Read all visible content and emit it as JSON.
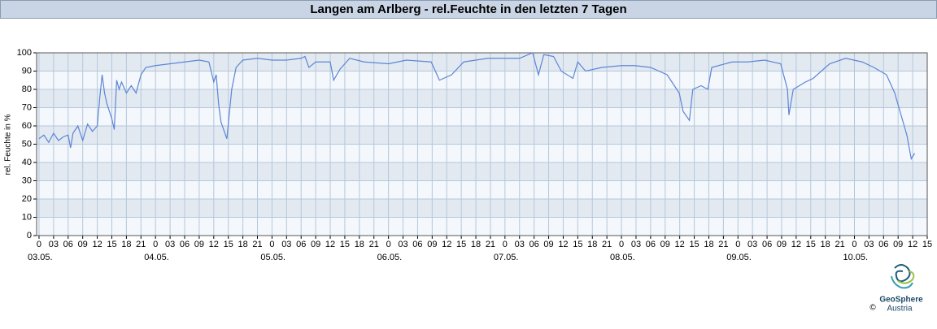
{
  "chart_data": {
    "type": "line",
    "title": "Langen am Arlberg - rel.Feuchte in den letzten 7 Tagen",
    "y_label": "rel. Feuchte in %",
    "color": "#5b86d6",
    "band_colors": [
      "#f4f7fb",
      "#e3e9f1"
    ],
    "grid": true,
    "xlim": [
      -0.5,
      183
    ],
    "ylim": [
      0,
      100
    ],
    "yticks": [
      0,
      10,
      20,
      30,
      40,
      50,
      60,
      70,
      80,
      90,
      100
    ],
    "xticks": [
      {
        "value": 0,
        "label": "0"
      },
      {
        "value": 3,
        "label": "03"
      },
      {
        "value": 6,
        "label": "06"
      },
      {
        "value": 9,
        "label": "09"
      },
      {
        "value": 12,
        "label": "12"
      },
      {
        "value": 15,
        "label": "15"
      },
      {
        "value": 18,
        "label": "18"
      },
      {
        "value": 21,
        "label": "21"
      },
      {
        "value": 24,
        "label": "0"
      },
      {
        "value": 27,
        "label": "03"
      },
      {
        "value": 30,
        "label": "06"
      },
      {
        "value": 33,
        "label": "09"
      },
      {
        "value": 36,
        "label": "12"
      },
      {
        "value": 39,
        "label": "15"
      },
      {
        "value": 42,
        "label": "18"
      },
      {
        "value": 45,
        "label": "21"
      },
      {
        "value": 48,
        "label": "0"
      },
      {
        "value": 51,
        "label": "03"
      },
      {
        "value": 54,
        "label": "06"
      },
      {
        "value": 57,
        "label": "09"
      },
      {
        "value": 60,
        "label": "12"
      },
      {
        "value": 63,
        "label": "15"
      },
      {
        "value": 66,
        "label": "18"
      },
      {
        "value": 69,
        "label": "21"
      },
      {
        "value": 72,
        "label": "0"
      },
      {
        "value": 75,
        "label": "03"
      },
      {
        "value": 78,
        "label": "06"
      },
      {
        "value": 81,
        "label": "09"
      },
      {
        "value": 84,
        "label": "12"
      },
      {
        "value": 87,
        "label": "15"
      },
      {
        "value": 90,
        "label": "18"
      },
      {
        "value": 93,
        "label": "21"
      },
      {
        "value": 96,
        "label": "0"
      },
      {
        "value": 99,
        "label": "03"
      },
      {
        "value": 102,
        "label": "06"
      },
      {
        "value": 105,
        "label": "09"
      },
      {
        "value": 108,
        "label": "12"
      },
      {
        "value": 111,
        "label": "15"
      },
      {
        "value": 114,
        "label": "18"
      },
      {
        "value": 117,
        "label": "21"
      },
      {
        "value": 120,
        "label": "0"
      },
      {
        "value": 123,
        "label": "03"
      },
      {
        "value": 126,
        "label": "06"
      },
      {
        "value": 129,
        "label": "09"
      },
      {
        "value": 132,
        "label": "12"
      },
      {
        "value": 135,
        "label": "15"
      },
      {
        "value": 138,
        "label": "18"
      },
      {
        "value": 141,
        "label": "21"
      },
      {
        "value": 144,
        "label": "0"
      },
      {
        "value": 147,
        "label": "03"
      },
      {
        "value": 150,
        "label": "06"
      },
      {
        "value": 153,
        "label": "09"
      },
      {
        "value": 156,
        "label": "12"
      },
      {
        "value": 159,
        "label": "15"
      },
      {
        "value": 162,
        "label": "18"
      },
      {
        "value": 165,
        "label": "21"
      },
      {
        "value": 168,
        "label": "0"
      },
      {
        "value": 171,
        "label": "03"
      },
      {
        "value": 174,
        "label": "06"
      },
      {
        "value": 177,
        "label": "09"
      },
      {
        "value": 180,
        "label": "12"
      },
      {
        "value": 183,
        "label": "15"
      }
    ],
    "day_labels": [
      {
        "value": 0,
        "label": "03.05."
      },
      {
        "value": 24,
        "label": "04.05."
      },
      {
        "value": 48,
        "label": "05.05."
      },
      {
        "value": 72,
        "label": "06.05."
      },
      {
        "value": 96,
        "label": "07.05."
      },
      {
        "value": 120,
        "label": "08.05."
      },
      {
        "value": 144,
        "label": "09.05."
      },
      {
        "value": 168,
        "label": "10.05."
      }
    ],
    "x": [
      0,
      1,
      2,
      3,
      4,
      5,
      6,
      6.5,
      7,
      8,
      9,
      10,
      11,
      12,
      12.5,
      13,
      13.5,
      14,
      15,
      15.5,
      16,
      16.5,
      17,
      18,
      19,
      20,
      21,
      22,
      24,
      27,
      30,
      33,
      35,
      36,
      36.5,
      37,
      37.5,
      38.7,
      39.7,
      40.6,
      42,
      45,
      48,
      51,
      54,
      54.8,
      55.6,
      57,
      60,
      60.7,
      62,
      64,
      67,
      72,
      75.7,
      80.8,
      82.5,
      85,
      87.5,
      92.5,
      96,
      99,
      101.7,
      102.9,
      104,
      106,
      107.6,
      110,
      111,
      112.6,
      116,
      120,
      122.7,
      126,
      129.4,
      131.9,
      132.7,
      134,
      134.7,
      136.4,
      137.8,
      138.6,
      142.8,
      146,
      149.5,
      152.8,
      154.2,
      154.5,
      155.4,
      157.9,
      159.5,
      162.9,
      166.2,
      169.6,
      172,
      174.6,
      176.3,
      177.6,
      178.8,
      179.7,
      180.4
    ],
    "values": [
      53,
      55,
      51,
      56,
      52,
      54,
      55,
      48,
      56,
      60,
      52,
      61,
      57,
      60,
      75,
      88,
      78,
      72,
      64,
      58,
      85,
      80,
      84,
      78,
      82,
      78,
      88,
      92,
      93,
      94,
      95,
      96,
      95,
      84,
      88,
      72,
      62,
      53,
      80,
      92,
      96,
      97,
      96,
      96,
      97,
      98,
      92,
      95,
      95,
      85,
      91,
      97,
      95,
      94,
      96,
      95,
      85,
      88,
      95,
      97,
      97,
      97,
      100,
      88,
      99,
      98,
      90,
      86,
      95,
      90,
      92,
      93,
      93,
      92,
      88,
      78,
      68,
      63,
      80,
      82,
      80,
      92,
      95,
      95,
      96,
      94,
      80,
      66,
      80,
      84,
      86,
      94,
      97,
      95,
      92,
      88,
      78,
      66,
      55,
      42,
      45
    ]
  },
  "logo": {
    "name": "GeoSphere",
    "sub": "Austria",
    "copyright": "©"
  }
}
